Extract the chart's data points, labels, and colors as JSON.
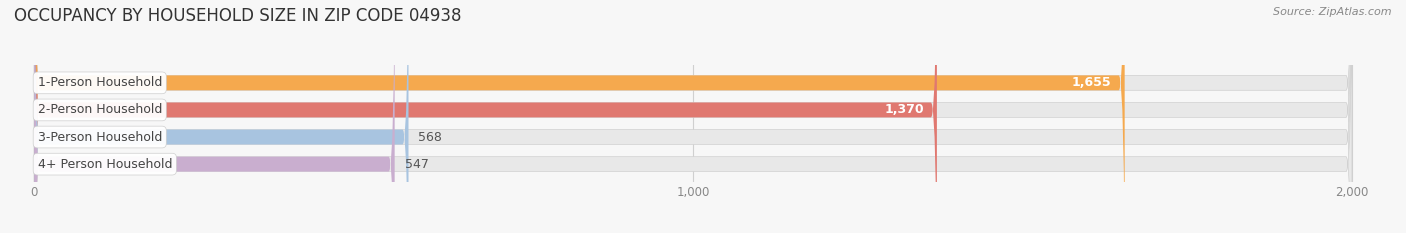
{
  "title": "OCCUPANCY BY HOUSEHOLD SIZE IN ZIP CODE 04938",
  "source": "Source: ZipAtlas.com",
  "categories": [
    "1-Person Household",
    "2-Person Household",
    "3-Person Household",
    "4+ Person Household"
  ],
  "values": [
    1655,
    1370,
    568,
    547
  ],
  "bar_colors": [
    "#F5A94E",
    "#E07870",
    "#A8C4E0",
    "#C9AECF"
  ],
  "bar_bg_color": "#E8E8E8",
  "value_labels": [
    "1,655",
    "1,370",
    "568",
    "547"
  ],
  "value_label_inside": [
    true,
    true,
    false,
    false
  ],
  "xlim_min": 0,
  "xlim_max": 2000,
  "xticks": [
    0,
    1000,
    2000
  ],
  "xtick_labels": [
    "0",
    "1,000",
    "2,000"
  ],
  "background_color": "#f7f7f7",
  "title_fontsize": 12,
  "label_fontsize": 9,
  "value_fontsize": 9
}
